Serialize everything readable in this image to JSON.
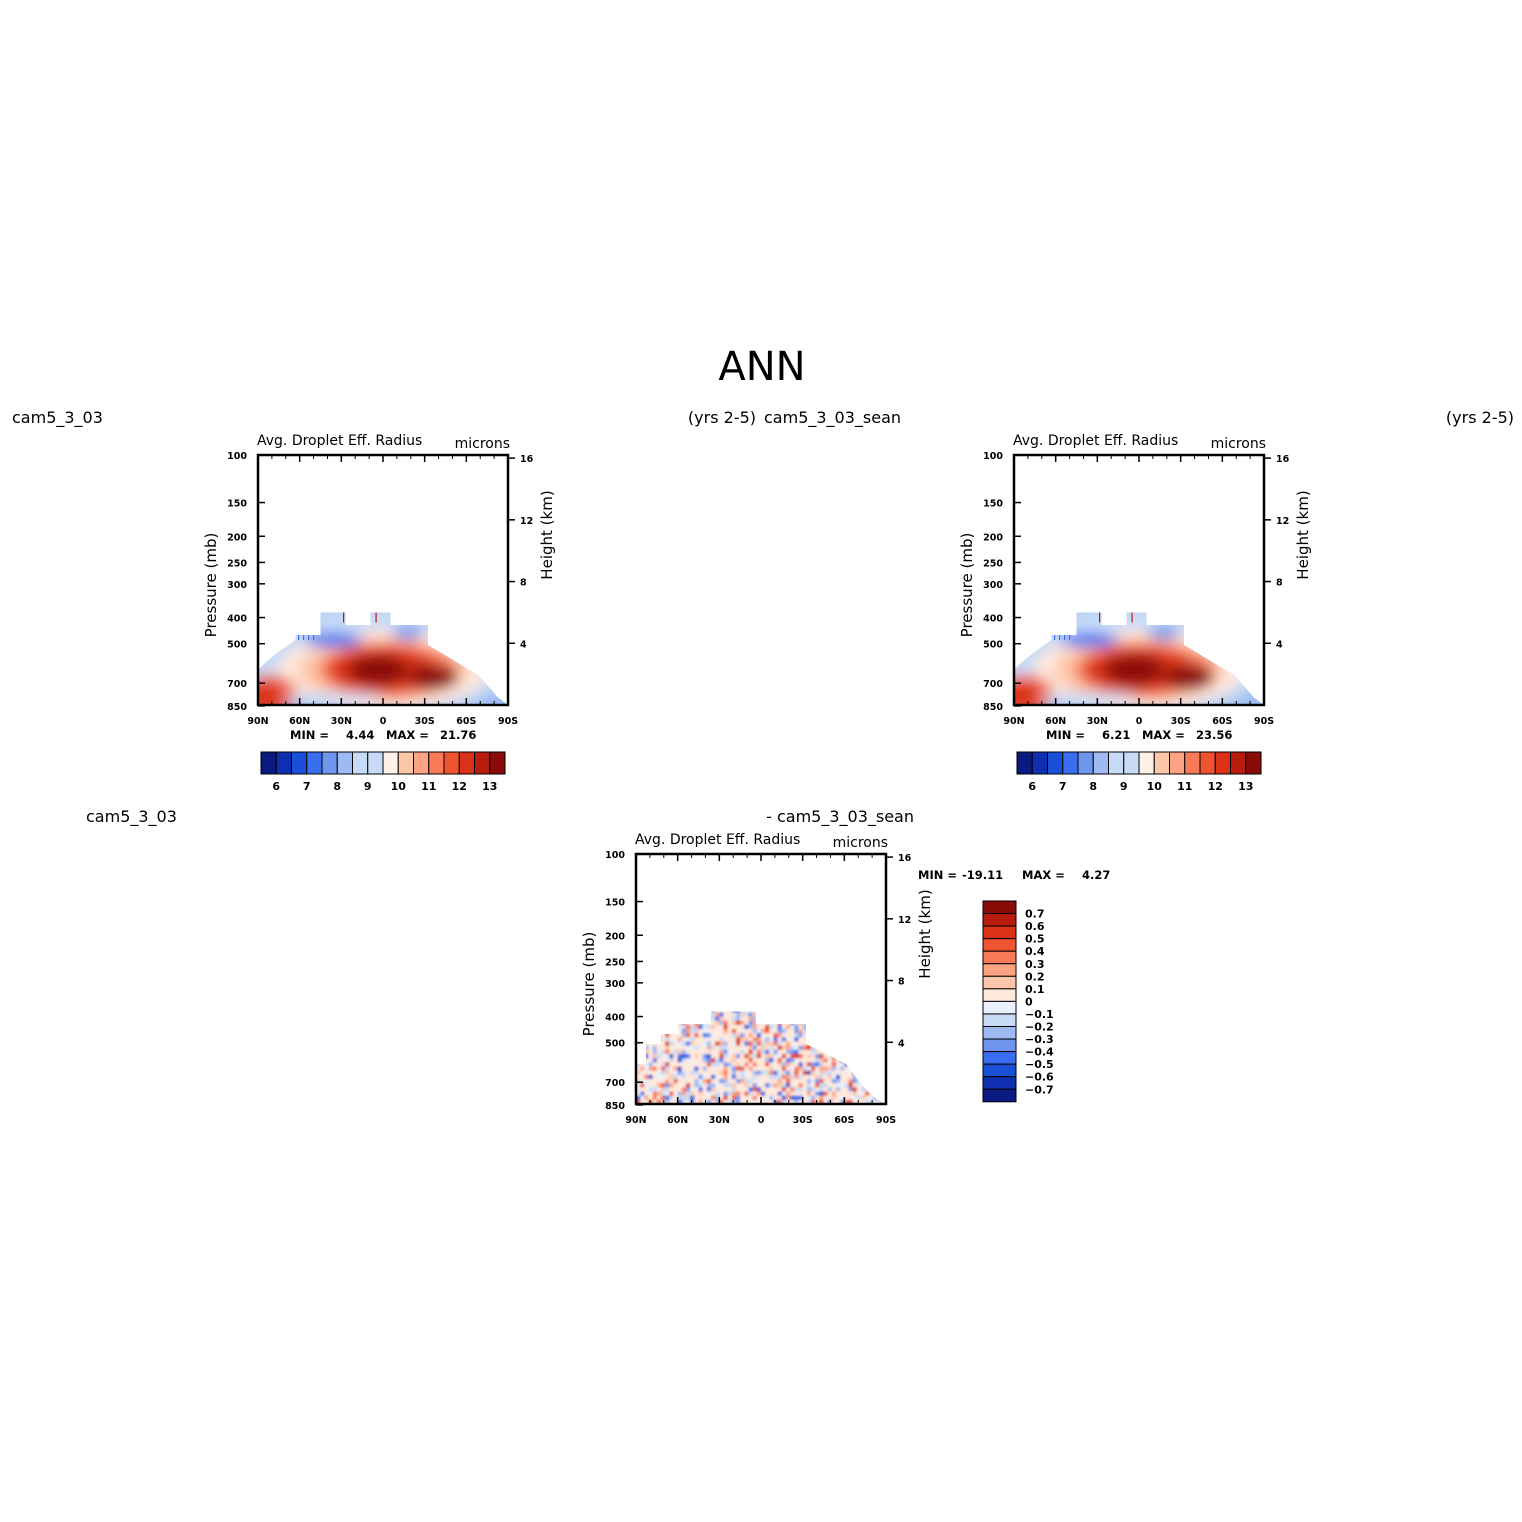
{
  "page_title": "ANN",
  "case_labels": {
    "top_left_case": "cam5_3_03",
    "top_left_years": "(yrs 2-5)",
    "top_right_case": "cam5_3_03_sean",
    "top_right_years": "(yrs 2-5)",
    "diff_left_case": "cam5_3_03",
    "diff_right_case": "- cam5_3_03_sean"
  },
  "chart_data": [
    {
      "id": "panel-1",
      "type": "heatmap",
      "title": "Avg. Droplet Eff. Radius",
      "units": "microns",
      "ylabel": "Pressure (mb)",
      "ylabel_right": "Height (km)",
      "x_ticks": [
        "90N",
        "60N",
        "30N",
        "0",
        "30S",
        "60S",
        "90S"
      ],
      "y_ticks": [
        "100",
        "150",
        "200",
        "250",
        "300",
        "400",
        "500",
        "700",
        "850"
      ],
      "y_right_ticks": [
        "16",
        "12",
        "8",
        "4"
      ],
      "min_label": "MIN =",
      "min_value": "4.44",
      "max_label": "MAX =",
      "max_value": "21.76",
      "colorbar_labels": [
        "6",
        "7",
        "8",
        "9",
        "10",
        "11",
        "12",
        "13"
      ]
    },
    {
      "id": "panel-2",
      "type": "heatmap",
      "title": "Avg. Droplet Eff. Radius",
      "units": "microns",
      "ylabel": "Pressure (mb)",
      "ylabel_right": "Height (km)",
      "x_ticks": [
        "90N",
        "60N",
        "30N",
        "0",
        "30S",
        "60S",
        "90S"
      ],
      "y_ticks": [
        "100",
        "150",
        "200",
        "250",
        "300",
        "400",
        "500",
        "700",
        "850"
      ],
      "y_right_ticks": [
        "16",
        "12",
        "8",
        "4"
      ],
      "min_label": "MIN =",
      "min_value": "6.21",
      "max_label": "MAX =",
      "max_value": "23.56",
      "colorbar_labels": [
        "6",
        "7",
        "8",
        "9",
        "10",
        "11",
        "12",
        "13"
      ]
    },
    {
      "id": "panel-diff",
      "type": "heatmap",
      "title": "Avg. Droplet Eff. Radius",
      "units": "microns",
      "ylabel": "Pressure (mb)",
      "ylabel_right": "Height (km)",
      "x_ticks": [
        "90N",
        "60N",
        "30N",
        "0",
        "30S",
        "60S",
        "90S"
      ],
      "y_ticks": [
        "100",
        "150",
        "200",
        "250",
        "300",
        "400",
        "500",
        "700",
        "850"
      ],
      "y_right_ticks": [
        "16",
        "12",
        "8",
        "4"
      ],
      "min_label": "MIN =",
      "min_value": "-19.11",
      "max_label": "MAX =",
      "max_value": "4.27",
      "colorbar_labels": [
        "0.7",
        "0.6",
        "0.5",
        "0.4",
        "0.3",
        "0.2",
        "0.1",
        "0",
        "-0.1",
        "-0.2",
        "-0.3",
        "-0.4",
        "-0.5",
        "-0.6",
        "-0.7"
      ]
    }
  ],
  "colors": {
    "seq_scale": [
      "#0a1a80",
      "#0d2fb0",
      "#1a4fd8",
      "#3a6ef0",
      "#6f96ee",
      "#9dbbf2",
      "#c7dbf7",
      "#ffe9dc",
      "#fdc6a9",
      "#fca383",
      "#f97a56",
      "#ef5330",
      "#d93217",
      "#b81c0c",
      "#8a0c08"
    ],
    "diff_scale": [
      "#8a0c08",
      "#b81c0c",
      "#d93217",
      "#ef5330",
      "#f97a56",
      "#fca383",
      "#fdc6a9",
      "#ffe9dc",
      "#e9f1fc",
      "#c7dbf7",
      "#9dbbf2",
      "#6f96ee",
      "#3a6ef0",
      "#1a4fd8",
      "#0d2fb0",
      "#0a1a80"
    ]
  }
}
